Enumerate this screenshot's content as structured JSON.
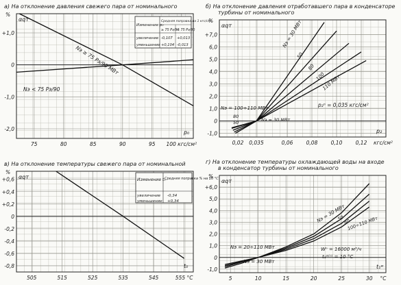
{
  "panels": [
    {
      "id": "a",
      "title_line1": "а) На отклонение давления свежего пара от номинального",
      "title_line2": "",
      "y_axis_unit": "%",
      "y_axis_symbol": "αqт",
      "x_axis_symbol": "p₀",
      "x_tick_labels": [
        "75",
        "80",
        "85",
        "90",
        "95",
        "100 кгс/см²"
      ],
      "y_tick_labels": [
        "+1,0",
        "0",
        "-1,0",
        "-2,0"
      ],
      "curve_labels": [
        "Nэ ≥ 75 Pэ/90 МВт",
        "Nэ < 75 Pэ/90"
      ],
      "inset_table": {
        "headers": [
          "Изменение p₀",
          "Средняя поправка на 1 кгс/см²"
        ],
        "subheaders": [
          "≥ 75 Pэ/90",
          "< 75 Pэ/90"
        ],
        "rows": [
          {
            "label": "увеличение",
            "v1": "-0,107",
            "v2": "+0,013"
          },
          {
            "label": "уменьшение",
            "v1": "+0,104",
            "v2": "-0,013"
          }
        ]
      }
    },
    {
      "id": "b",
      "title_line1": "б) На отклонение давления отработавшего пара в конденсаторе",
      "title_line2": "турбины от номинального",
      "y_axis_unit": "%",
      "y_axis_symbol": "αqт",
      "x_axis_symbol": "p₂",
      "x_tick_labels": [
        "0,02",
        "0,035",
        "0,06",
        "0,08",
        "0,10",
        "0,12",
        "кгс/см²"
      ],
      "y_tick_labels": [
        "+7,0",
        "6,0",
        "5,0",
        "4,0",
        "3,0",
        "2,0",
        "1,0",
        "0",
        "-1,0"
      ],
      "curve_labels": [
        "Nэ = 30 МВт",
        "50",
        "80",
        "100",
        "110 МВт",
        "Nэ = 100÷110 МВт",
        "80",
        "50",
        "Nэ = 30 МВт"
      ],
      "annotation": "p₂ⁿ = 0,035 кгс/см²"
    },
    {
      "id": "c",
      "title_line1": "в) На отклонение температуры свежего пара от номинальной",
      "title_line2": "",
      "y_axis_unit": "%",
      "y_axis_symbol": "αqт",
      "x_axis_symbol": "t₀",
      "x_tick_labels": [
        "505",
        "515",
        "525",
        "535",
        "545",
        "555 °C"
      ],
      "y_tick_labels": [
        "+0,6",
        "+0,4",
        "+0,2",
        "0",
        "-0,2",
        "-0,4",
        "-0,6",
        "-0,8"
      ],
      "inset_table": {
        "headers": [
          "Изменение t₀",
          "Средняя поправка % на 10 °C"
        ],
        "rows": [
          {
            "label": "увеличение",
            "v1": "-0,34"
          },
          {
            "label": "уменьшение",
            "v1": "+0,34"
          }
        ]
      }
    },
    {
      "id": "d",
      "title_line1": "г) На отклонение температуры охлаждающей воды на входе",
      "title_line2": "в конденсатор турбины от номинального",
      "y_axis_unit": "%",
      "y_axis_symbol": "αqт",
      "x_axis_symbol": "t₁ʷ",
      "x_tick_labels": [
        "5",
        "10",
        "15",
        "20",
        "25",
        "30",
        "°C"
      ],
      "y_tick_labels": [
        "+6,0",
        "5,0",
        "4,0",
        "3,0",
        "2,0",
        "1,0",
        "0",
        "-1,0"
      ],
      "curve_labels": [
        "Nэ = 30 МВт",
        "50",
        "80",
        "100÷110 МВт",
        "Nэ = 20÷110 МВт",
        "Nэ = 30 МВт"
      ],
      "annotation_line1": "Wⁿ = 16000 м³/ч",
      "annotation_line2": "t₁ʷ⁽ⁿ⁾ = 10 °C"
    }
  ],
  "chart_data": [
    {
      "type": "line",
      "title": "а) На отклонение давления свежего пара от номинального",
      "xlabel": "p₀, кгс/см²",
      "ylabel": "αqт, %",
      "xlim": [
        72,
        102
      ],
      "ylim": [
        -2.3,
        1.6
      ],
      "x_ticks": [
        75,
        80,
        85,
        90,
        95,
        100
      ],
      "y_ticks": [
        1.0,
        0,
        -1.0,
        -2.0
      ],
      "grid": true,
      "series": [
        {
          "name": "Nэ ≥ 75 Pэ/90 МВт",
          "x": [
            72.5,
            90,
            102
          ],
          "y": [
            1.87,
            0,
            -1.28
          ]
        },
        {
          "name": "Nэ < 75 Pэ/90",
          "x": [
            72,
            90,
            102
          ],
          "y": [
            -0.23,
            0,
            0.16
          ]
        }
      ]
    },
    {
      "type": "line",
      "title": "б) На отклонение давления отработавшего пара в конденсаторе турбины от номинального",
      "xlabel": "p₂, кгс/см²",
      "ylabel": "αqт, %",
      "xlim": [
        0.005,
        0.14
      ],
      "ylim": [
        -1.3,
        8.2
      ],
      "x_ticks": [
        0.02,
        0.035,
        0.06,
        0.08,
        0.1,
        0.12
      ],
      "y_ticks": [
        7.0,
        6.0,
        5.0,
        4.0,
        3.0,
        2.0,
        1.0,
        0,
        -1.0
      ],
      "grid": true,
      "series": [
        {
          "name": "Nэ = 30 МВт",
          "x": [
            0.018,
            0.035,
            0.09
          ],
          "y": [
            -1.0,
            0,
            8.0
          ]
        },
        {
          "name": "50",
          "x": [
            0.017,
            0.035,
            0.1
          ],
          "y": [
            -0.9,
            0,
            7.3
          ]
        },
        {
          "name": "80",
          "x": [
            0.016,
            0.035,
            0.11
          ],
          "y": [
            -0.75,
            0,
            6.3
          ]
        },
        {
          "name": "100",
          "x": [
            0.015,
            0.035,
            0.12
          ],
          "y": [
            -0.6,
            0,
            5.6
          ]
        },
        {
          "name": "110 МВт",
          "x": [
            0.015,
            0.035,
            0.124
          ],
          "y": [
            -0.55,
            0,
            4.9
          ]
        }
      ]
    },
    {
      "type": "line",
      "title": "в) На отклонение температуры свежего пара от номинальной",
      "xlabel": "t₀, °C",
      "ylabel": "αqт, %",
      "xlim": [
        500,
        558
      ],
      "ylim": [
        -0.9,
        0.73
      ],
      "x_ticks": [
        505,
        515,
        525,
        535,
        545,
        555
      ],
      "y_ticks": [
        0.6,
        0.4,
        0.2,
        0,
        -0.2,
        -0.4,
        -0.6,
        -0.8
      ],
      "grid": true,
      "series": [
        {
          "name": "",
          "x": [
            513,
            535,
            555
          ],
          "y": [
            0.76,
            0,
            -0.68
          ]
        }
      ]
    },
    {
      "type": "line",
      "title": "г) На отклонение температуры охлаждающей воды на входе в конденсатор турбины от номинального",
      "xlabel": "t₁ʷ, °C",
      "ylabel": "αqт, %",
      "xlim": [
        3,
        33
      ],
      "ylim": [
        -1.3,
        7.0
      ],
      "x_ticks": [
        5,
        10,
        15,
        20,
        25,
        30
      ],
      "y_ticks": [
        6.0,
        5.0,
        4.0,
        3.0,
        2.0,
        1.0,
        0,
        -1.0
      ],
      "grid": true,
      "series": [
        {
          "name": "Nэ = 30 МВт",
          "x": [
            4,
            7,
            10,
            15,
            20,
            25,
            30
          ],
          "y": [
            -0.9,
            -0.5,
            0,
            0.9,
            2.0,
            3.8,
            6.3
          ]
        },
        {
          "name": "50",
          "x": [
            4,
            7,
            10,
            15,
            20,
            25,
            30
          ],
          "y": [
            -0.8,
            -0.4,
            0,
            0.8,
            1.8,
            3.3,
            5.4
          ]
        },
        {
          "name": "80",
          "x": [
            4,
            7,
            10,
            15,
            20,
            25,
            30
          ],
          "y": [
            -0.7,
            -0.35,
            0,
            0.7,
            1.6,
            2.9,
            4.8
          ]
        },
        {
          "name": "100÷110 МВт",
          "x": [
            4,
            7,
            10,
            15,
            20,
            25,
            30
          ],
          "y": [
            -0.6,
            -0.3,
            0,
            0.6,
            1.4,
            2.6,
            4.3
          ]
        }
      ]
    }
  ]
}
